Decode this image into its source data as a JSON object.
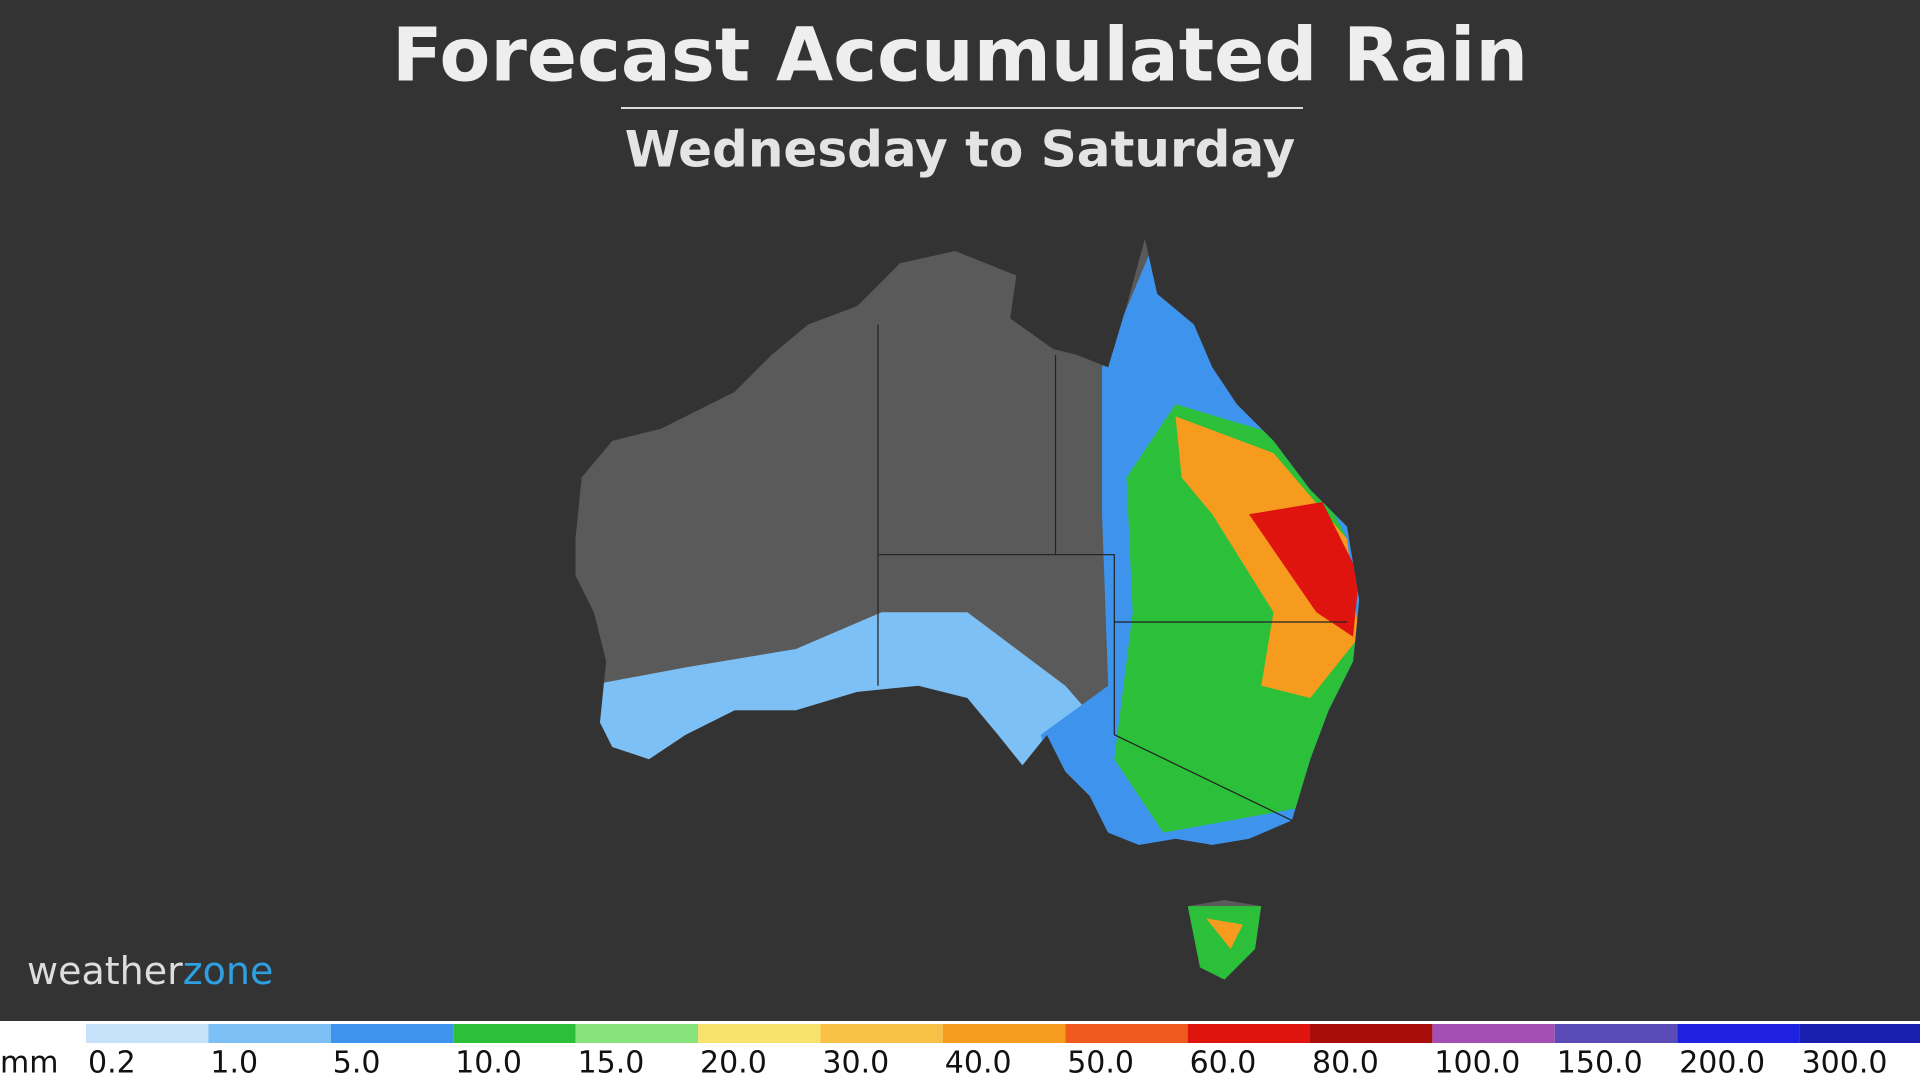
{
  "header": {
    "title": "Forecast Accumulated Rain",
    "subtitle": "Wednesday to Saturday"
  },
  "logo": {
    "part1": "weather",
    "part2": "zone"
  },
  "legend": {
    "unit": "mm",
    "items": [
      {
        "label": "0.2",
        "color": "#c6e3fb"
      },
      {
        "label": "1.0",
        "color": "#7dc0f5"
      },
      {
        "label": "5.0",
        "color": "#3e93ec"
      },
      {
        "label": "10.0",
        "color": "#2bbf3a"
      },
      {
        "label": "15.0",
        "color": "#88e37c"
      },
      {
        "label": "20.0",
        "color": "#f7e26b"
      },
      {
        "label": "30.0",
        "color": "#f8c145"
      },
      {
        "label": "40.0",
        "color": "#f79b1e"
      },
      {
        "label": "50.0",
        "color": "#ef5b1c"
      },
      {
        "label": "60.0",
        "color": "#e0140f"
      },
      {
        "label": "80.0",
        "color": "#a80d0a"
      },
      {
        "label": "100.0",
        "color": "#a34fb4"
      },
      {
        "label": "150.0",
        "color": "#5a4bb8"
      },
      {
        "label": "200.0",
        "color": "#1f22e0"
      },
      {
        "label": "300.0",
        "color": "#1a1fb0"
      }
    ]
  }
}
